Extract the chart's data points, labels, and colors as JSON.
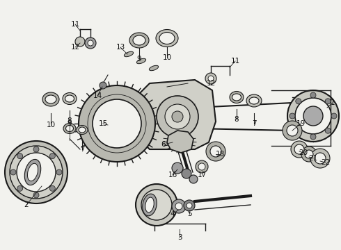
{
  "bg_color": "#f2f2ee",
  "line_color": "#1a1a1a",
  "label_color": "#111111",
  "label_fontsize": 7.5,
  "fig_width": 4.9,
  "fig_height": 3.6,
  "dpi": 100
}
